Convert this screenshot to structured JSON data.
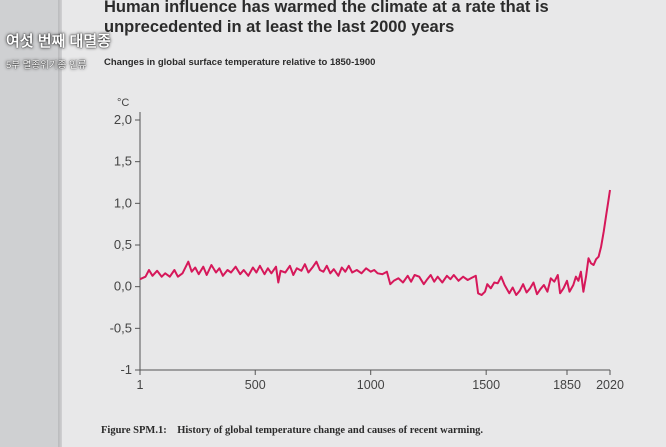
{
  "overlay": {
    "title": "여섯 번째 대멸종",
    "subtitle": "5부 멸종위기종 인류"
  },
  "headline": "Human influence has warmed the climate at a rate that is unprecedented in at least the last 2000 years",
  "figure_caption": {
    "label": "Figure SPM.1:",
    "text": "History of global temperature change and causes of recent warming."
  },
  "chart_data": {
    "type": "line",
    "title": "Changes in global surface temperature relative to 1850-1900",
    "ylabel": "°C",
    "xlabel": "",
    "ylim": [
      -1,
      2.0
    ],
    "xticks": [
      "1",
      "500",
      "1000",
      "1500",
      "1850",
      "2020"
    ],
    "yticks": [
      "2,0",
      "1,5",
      "1,0",
      "0,5",
      "0,0",
      "-0,5",
      "-1"
    ],
    "grid": false,
    "colors": {
      "line": "#d6185a",
      "axis": "#555555"
    },
    "series": [
      {
        "points": [
          [
            1,
            0.09
          ],
          [
            25,
            0.12
          ],
          [
            40,
            0.2
          ],
          [
            55,
            0.13
          ],
          [
            75,
            0.19
          ],
          [
            95,
            0.12
          ],
          [
            110,
            0.16
          ],
          [
            130,
            0.12
          ],
          [
            150,
            0.2
          ],
          [
            165,
            0.12
          ],
          [
            185,
            0.16
          ],
          [
            210,
            0.3
          ],
          [
            225,
            0.18
          ],
          [
            240,
            0.23
          ],
          [
            255,
            0.15
          ],
          [
            275,
            0.24
          ],
          [
            290,
            0.14
          ],
          [
            310,
            0.26
          ],
          [
            330,
            0.17
          ],
          [
            345,
            0.22
          ],
          [
            360,
            0.13
          ],
          [
            380,
            0.2
          ],
          [
            395,
            0.17
          ],
          [
            415,
            0.24
          ],
          [
            435,
            0.15
          ],
          [
            450,
            0.2
          ],
          [
            470,
            0.13
          ],
          [
            490,
            0.23
          ],
          [
            505,
            0.17
          ],
          [
            520,
            0.25
          ],
          [
            540,
            0.15
          ],
          [
            555,
            0.22
          ],
          [
            570,
            0.16
          ],
          [
            590,
            0.24
          ],
          [
            600,
            0.05
          ],
          [
            610,
            0.19
          ],
          [
            630,
            0.17
          ],
          [
            650,
            0.25
          ],
          [
            665,
            0.14
          ],
          [
            680,
            0.22
          ],
          [
            700,
            0.19
          ],
          [
            715,
            0.27
          ],
          [
            730,
            0.17
          ],
          [
            750,
            0.24
          ],
          [
            765,
            0.3
          ],
          [
            780,
            0.2
          ],
          [
            795,
            0.18
          ],
          [
            810,
            0.25
          ],
          [
            825,
            0.16
          ],
          [
            840,
            0.21
          ],
          [
            860,
            0.13
          ],
          [
            875,
            0.23
          ],
          [
            890,
            0.18
          ],
          [
            905,
            0.25
          ],
          [
            920,
            0.17
          ],
          [
            940,
            0.2
          ],
          [
            960,
            0.16
          ],
          [
            980,
            0.22
          ],
          [
            1000,
            0.18
          ],
          [
            1015,
            0.2
          ],
          [
            1030,
            0.16
          ],
          [
            1050,
            0.15
          ],
          [
            1070,
            0.18
          ],
          [
            1085,
            0.03
          ],
          [
            1100,
            0.07
          ],
          [
            1120,
            0.1
          ],
          [
            1140,
            0.05
          ],
          [
            1160,
            0.13
          ],
          [
            1175,
            0.06
          ],
          [
            1190,
            0.14
          ],
          [
            1210,
            0.12
          ],
          [
            1230,
            0.03
          ],
          [
            1245,
            0.09
          ],
          [
            1260,
            0.14
          ],
          [
            1275,
            0.06
          ],
          [
            1290,
            0.12
          ],
          [
            1310,
            0.05
          ],
          [
            1330,
            0.13
          ],
          [
            1345,
            0.09
          ],
          [
            1360,
            0.14
          ],
          [
            1380,
            0.07
          ],
          [
            1400,
            0.12
          ],
          [
            1420,
            0.08
          ],
          [
            1440,
            0.11
          ],
          [
            1455,
            0.13
          ],
          [
            1465,
            -0.08
          ],
          [
            1480,
            -0.1
          ],
          [
            1495,
            -0.06
          ],
          [
            1505,
            0.03
          ],
          [
            1520,
            -0.02
          ],
          [
            1535,
            0.05
          ],
          [
            1550,
            0.04
          ],
          [
            1565,
            0.12
          ],
          [
            1580,
            0.02
          ],
          [
            1600,
            -0.08
          ],
          [
            1615,
            -0.01
          ],
          [
            1630,
            -0.1
          ],
          [
            1645,
            -0.05
          ],
          [
            1660,
            0.03
          ],
          [
            1675,
            -0.07
          ],
          [
            1690,
            -0.02
          ],
          [
            1705,
            0.05
          ],
          [
            1720,
            -0.09
          ],
          [
            1735,
            -0.03
          ],
          [
            1750,
            0.02
          ],
          [
            1765,
            -0.06
          ],
          [
            1780,
            0.1
          ],
          [
            1795,
            0.06
          ],
          [
            1810,
            0.14
          ],
          [
            1820,
            -0.08
          ],
          [
            1835,
            -0.02
          ],
          [
            1850,
            0.07
          ],
          [
            1860,
            -0.06
          ],
          [
            1875,
            0.02
          ],
          [
            1885,
            0.12
          ],
          [
            1895,
            0.07
          ],
          [
            1905,
            0.18
          ],
          [
            1915,
            -0.06
          ],
          [
            1925,
            0.12
          ],
          [
            1935,
            0.34
          ],
          [
            1945,
            0.28
          ],
          [
            1955,
            0.26
          ],
          [
            1965,
            0.33
          ],
          [
            1975,
            0.36
          ],
          [
            1985,
            0.48
          ],
          [
            1995,
            0.66
          ],
          [
            2005,
            0.86
          ],
          [
            2012,
            1.0
          ],
          [
            2020,
            1.16
          ]
        ]
      }
    ]
  }
}
